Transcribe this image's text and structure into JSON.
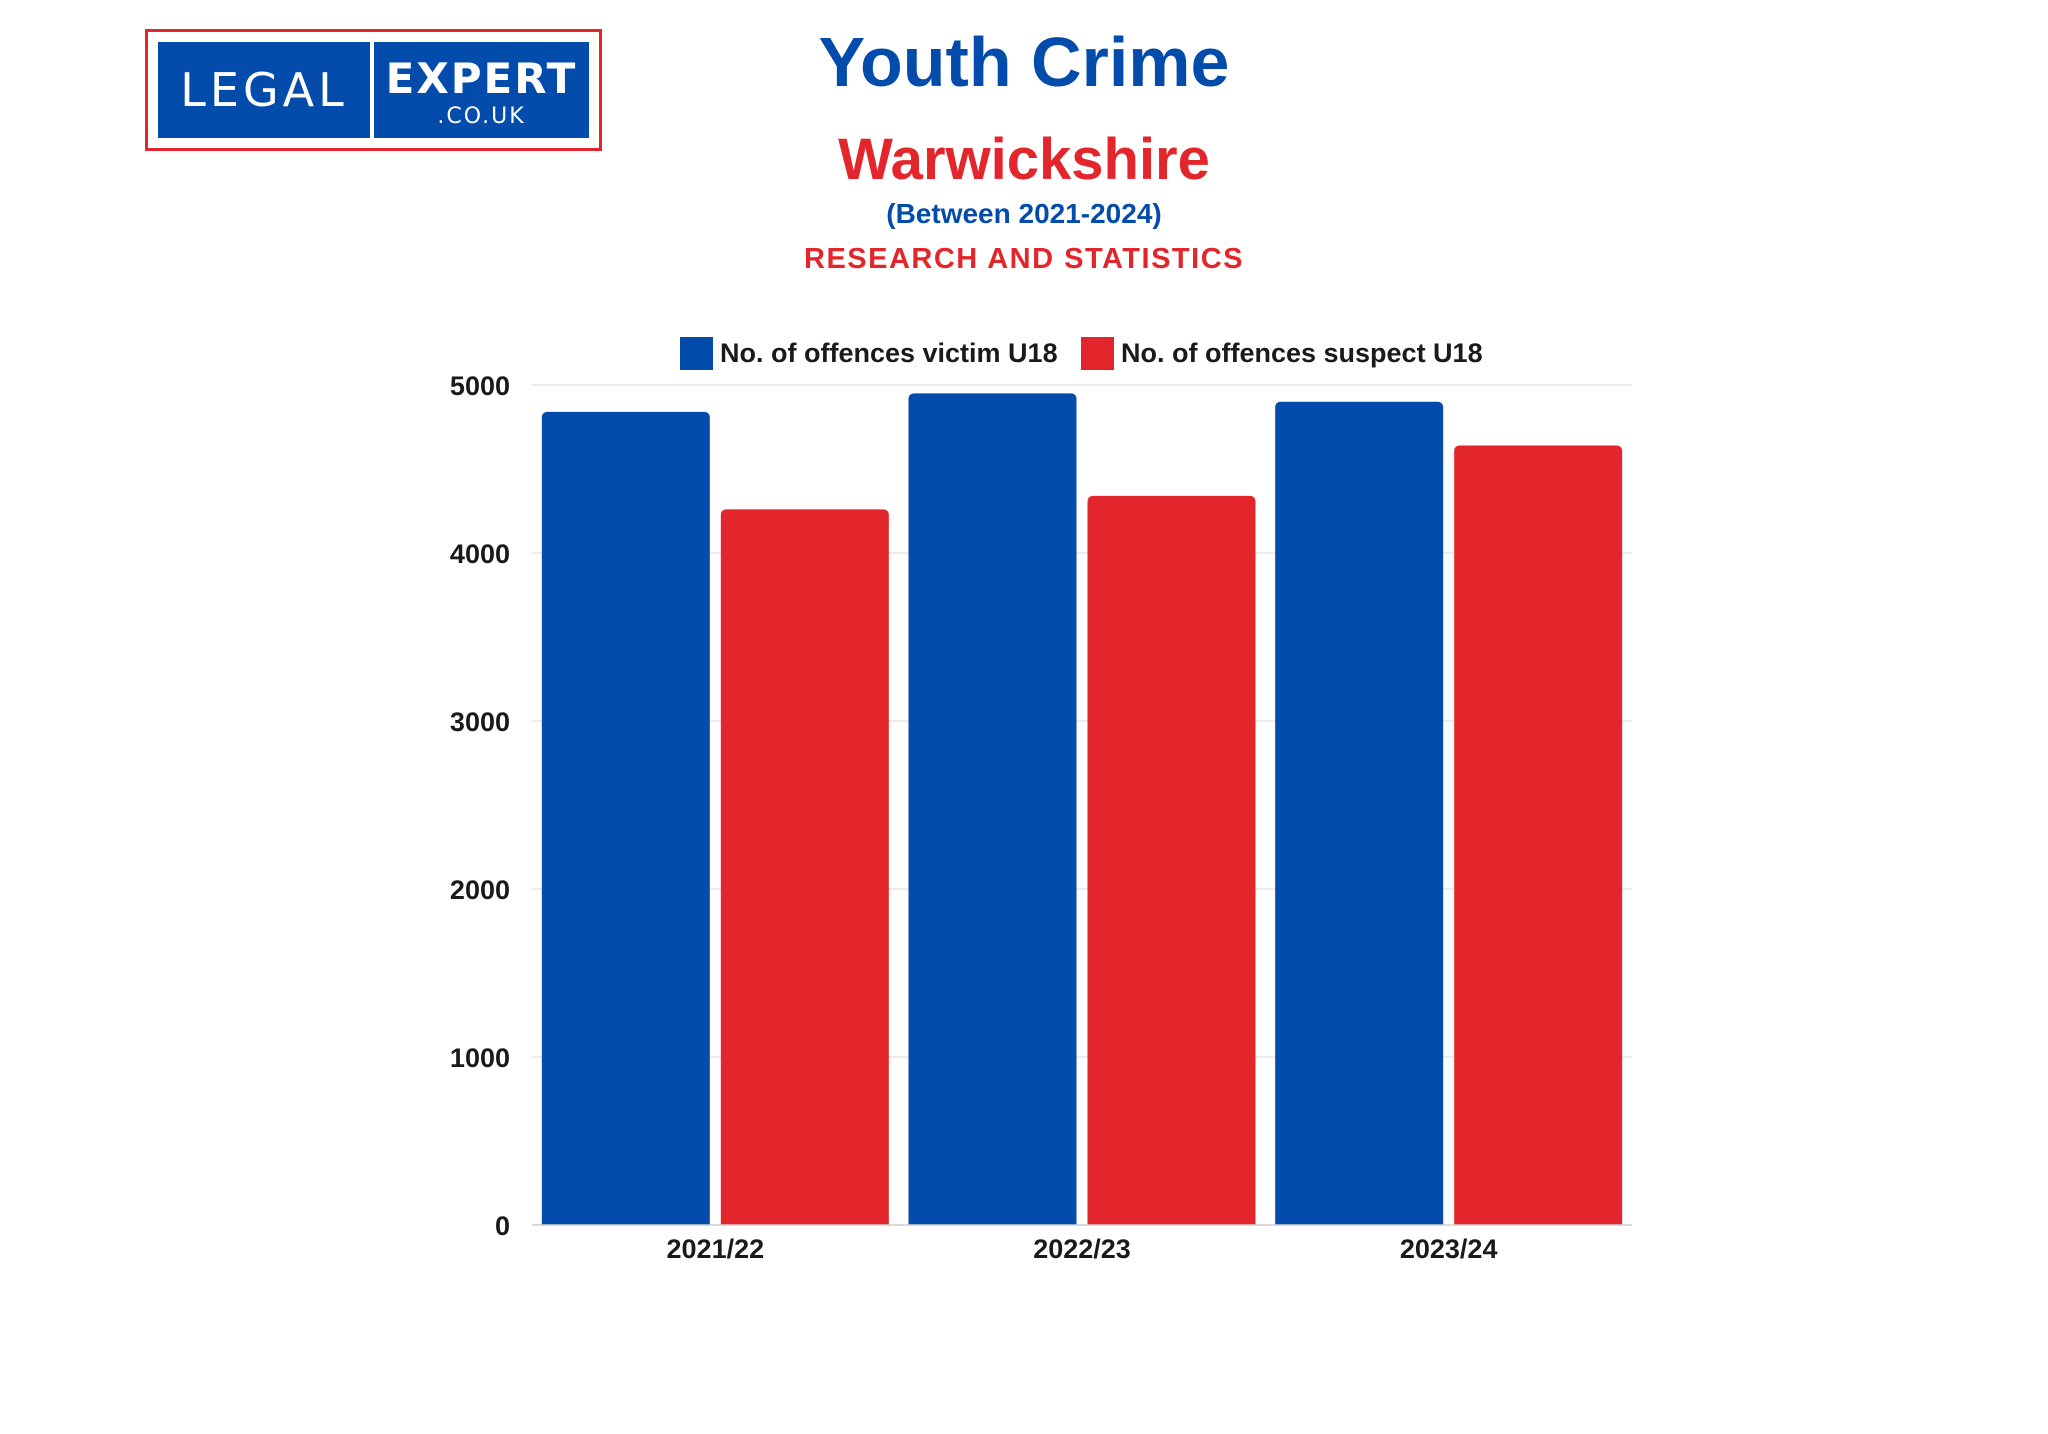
{
  "logo": {
    "word1": "LEGAL",
    "word2": "EXPERT",
    "word3": ".CO.UK"
  },
  "header": {
    "title": "Youth Crime",
    "subtitle": "Warwickshire",
    "period": "(Between 2021-2024)",
    "tagline": "RESEARCH AND STATISTICS"
  },
  "colors": {
    "victim": "#044cab",
    "suspect": "#e3262b",
    "gridline": "#e6e6e6"
  },
  "chart_data": {
    "type": "bar",
    "categories": [
      "2021/22",
      "2022/23",
      "2023/24"
    ],
    "series": [
      {
        "name": "No. of offences victim U18",
        "values": [
          4840,
          4950,
          4900
        ]
      },
      {
        "name": "No. of offences suspect U18",
        "values": [
          4260,
          4340,
          4640
        ]
      }
    ],
    "yticks": [
      "0",
      "1000",
      "2000",
      "3000",
      "4000",
      "5000"
    ],
    "ylim": [
      0,
      5000
    ],
    "grid": true,
    "legend": "top"
  }
}
